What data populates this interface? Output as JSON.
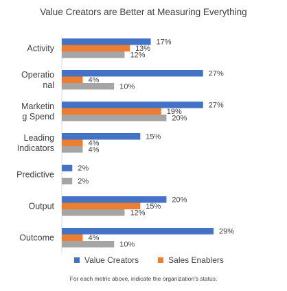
{
  "chart_data": {
    "type": "bar",
    "orientation": "horizontal",
    "title": "Value Creators are Better at Measuring Everything",
    "categories": [
      [
        "Activity"
      ],
      [
        "Operatio",
        "nal"
      ],
      [
        "Marketin",
        "g Spend"
      ],
      [
        "Leading",
        "Indicators"
      ],
      [
        "Predictive"
      ],
      [
        "Output"
      ],
      [
        "Outcome"
      ]
    ],
    "series": [
      {
        "name": "Value Creators",
        "color": "#4472C4",
        "values": [
          17,
          27,
          27,
          15,
          2,
          20,
          29
        ],
        "labels": [
          "17%",
          "27%",
          "27%",
          "15%",
          "2%",
          "20%",
          "29%"
        ]
      },
      {
        "name": "Sales Enablers",
        "color": "#ED7D31",
        "values": [
          13,
          4,
          19,
          4,
          null,
          15,
          4
        ],
        "labels": [
          "13%",
          "4%",
          "19%",
          "4%",
          "",
          "15%",
          "4%"
        ]
      },
      {
        "name": "",
        "color": "#A5A5A5",
        "values": [
          12,
          10,
          20,
          4,
          2,
          12,
          10
        ],
        "labels": [
          "12%",
          "10%",
          "20%",
          "4%",
          "2%",
          "12%",
          "10%"
        ]
      }
    ],
    "legend": [
      "Value Creators",
      "Sales Enablers"
    ],
    "xlim": [
      0,
      29
    ],
    "grid": false,
    "legend_position": "bottom",
    "footnote": "For each metric above, indicate the organization's status."
  }
}
